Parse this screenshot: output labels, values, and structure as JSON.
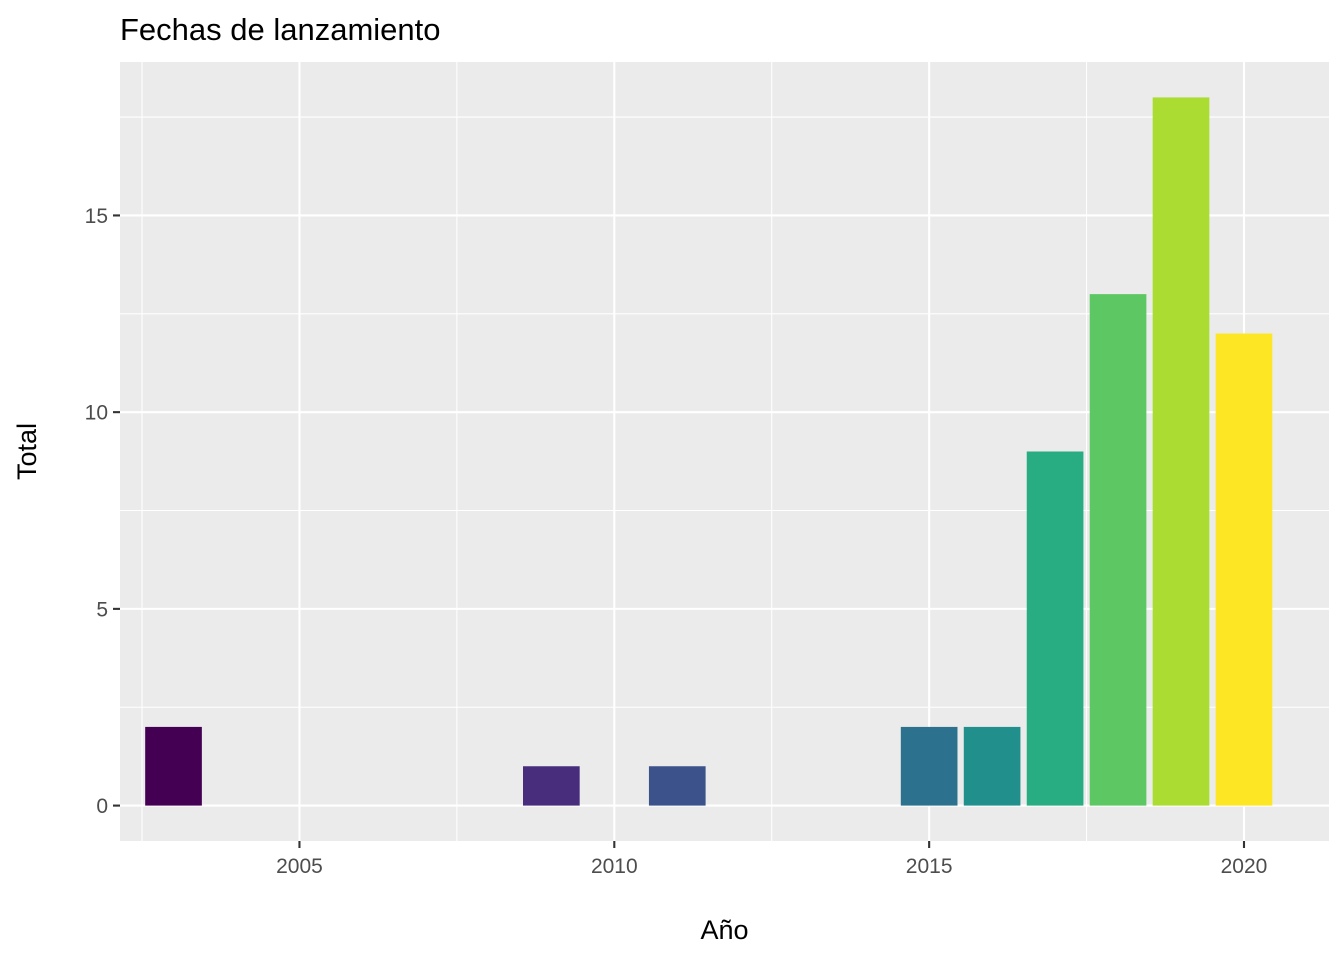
{
  "chart_data": {
    "type": "bar",
    "title": "Fechas de lanzamiento",
    "xlabel": "Año",
    "ylabel": "Total",
    "x": [
      2003,
      2009,
      2011,
      2015,
      2016,
      2017,
      2018,
      2019,
      2020
    ],
    "values": [
      2,
      1,
      1,
      2,
      2,
      9,
      13,
      18,
      12
    ],
    "colors": [
      "#440154",
      "#472D7B",
      "#3B528B",
      "#2C728E",
      "#21908C",
      "#27AD81",
      "#5DC863",
      "#AADC32",
      "#FDE725"
    ],
    "xlim": [
      2002.15,
      2021.35
    ],
    "ylim": [
      -0.9,
      18.9
    ],
    "xticks": [
      2005,
      2010,
      2015,
      2020
    ],
    "xtick_labels": [
      "2005",
      "2010",
      "2015",
      "2020"
    ],
    "yticks": [
      0,
      5,
      10,
      15
    ],
    "ytick_labels": [
      "0",
      "5",
      "10",
      "15"
    ],
    "grid": true,
    "legend": "none",
    "panel_background": "#ebebeb",
    "grid_color": "#ffffff"
  }
}
